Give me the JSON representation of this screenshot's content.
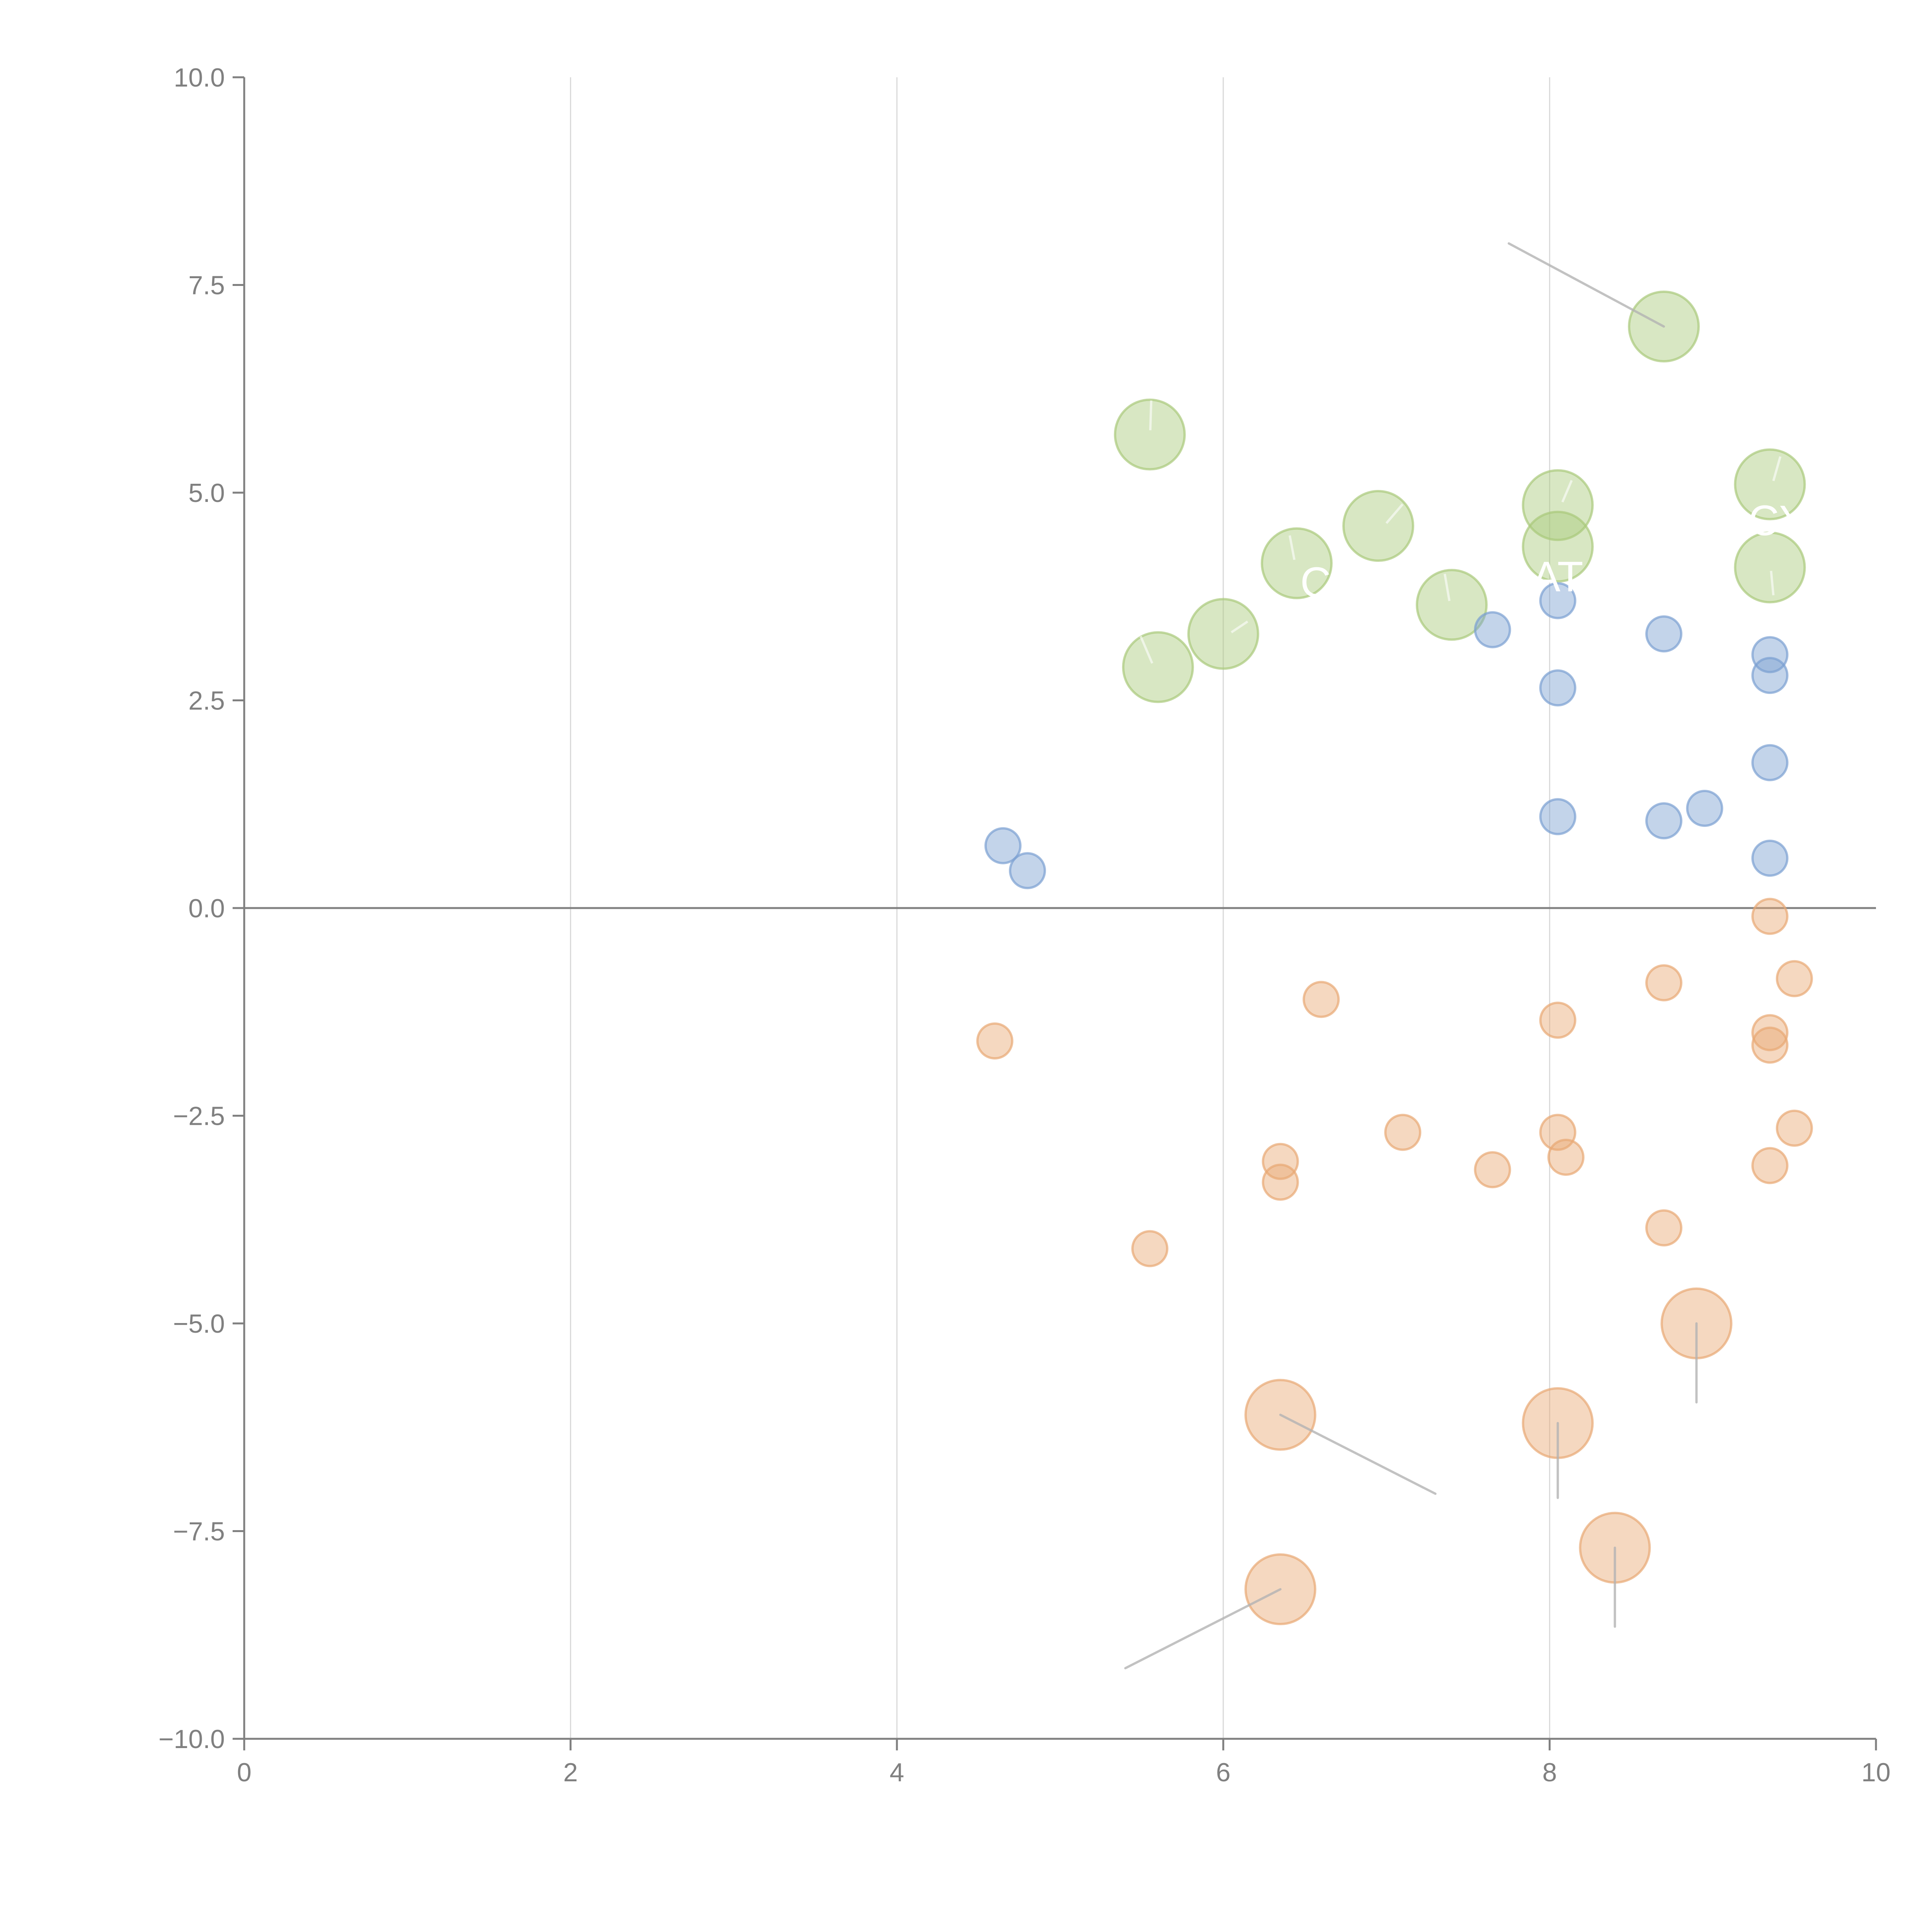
{
  "colors": {
    "green": "#a9c97a",
    "blue": "#7a9fd1",
    "orange": "#e8a873",
    "axis": "#808080",
    "grid": "#d9d9d9",
    "connector": "#b3b3b3"
  },
  "chart_data": {
    "type": "scatter",
    "title": "",
    "xlabel": "",
    "ylabel": "",
    "xlim": [
      0,
      10
    ],
    "ylim": [
      -10,
      10
    ],
    "x_ticks": [
      "0",
      "2",
      "4",
      "6",
      "8",
      "10"
    ],
    "y_ticks": [
      "10.0",
      "7.5",
      "5.0",
      "2.5",
      "0.0",
      "−2.5",
      "−5.0",
      "−7.5",
      "−10.0"
    ],
    "grid": "vertical",
    "visible_label_fragments": [
      "C",
      "AT",
      "CY"
    ],
    "series": [
      {
        "name": "green",
        "color": "#a9c97a",
        "size": "large",
        "points": [
          [
            5.55,
            5.7
          ],
          [
            8.7,
            7.0
          ],
          [
            6.95,
            4.6
          ],
          [
            6.45,
            4.15
          ],
          [
            8.05,
            4.85
          ],
          [
            8.05,
            4.35
          ],
          [
            9.35,
            5.1
          ],
          [
            9.35,
            4.1
          ],
          [
            7.4,
            3.65
          ],
          [
            6.0,
            3.3
          ],
          [
            5.6,
            2.9
          ]
        ]
      },
      {
        "name": "blue",
        "color": "#7a9fd1",
        "size": "small",
        "points": [
          [
            4.65,
            0.75
          ],
          [
            4.8,
            0.45
          ],
          [
            7.65,
            3.35
          ],
          [
            8.05,
            3.7
          ],
          [
            8.05,
            2.65
          ],
          [
            8.7,
            3.3
          ],
          [
            9.35,
            3.05
          ],
          [
            9.35,
            2.8
          ],
          [
            9.35,
            1.75
          ],
          [
            8.05,
            1.1
          ],
          [
            8.7,
            1.05
          ],
          [
            8.95,
            1.2
          ],
          [
            9.35,
            0.6
          ]
        ]
      },
      {
        "name": "orange-small",
        "color": "#e8a873",
        "size": "small",
        "points": [
          [
            9.35,
            -0.1
          ],
          [
            6.6,
            -1.1
          ],
          [
            4.6,
            -1.6
          ],
          [
            8.7,
            -0.9
          ],
          [
            9.5,
            -0.85
          ],
          [
            8.05,
            -1.35
          ],
          [
            9.35,
            -1.5
          ],
          [
            9.35,
            -1.65
          ],
          [
            7.1,
            -2.7
          ],
          [
            8.05,
            -2.7
          ],
          [
            8.1,
            -3.0
          ],
          [
            9.5,
            -2.65
          ],
          [
            6.35,
            -3.05
          ],
          [
            6.35,
            -3.3
          ],
          [
            7.65,
            -3.15
          ],
          [
            9.35,
            -3.1
          ],
          [
            5.55,
            -4.1
          ],
          [
            8.7,
            -3.85
          ]
        ]
      },
      {
        "name": "orange-large",
        "color": "#e8a873",
        "size": "large",
        "points": [
          [
            8.9,
            -5.0
          ],
          [
            6.35,
            -6.1
          ],
          [
            8.05,
            -6.2
          ],
          [
            8.4,
            -7.7
          ],
          [
            6.35,
            -8.2
          ]
        ]
      }
    ],
    "connectors": [
      [
        [
          8.7,
          7.0
        ],
        [
          7.75,
          8.0
        ]
      ],
      [
        [
          6.35,
          -6.1
        ],
        [
          7.3,
          -7.05
        ]
      ],
      [
        [
          8.05,
          -6.2
        ],
        [
          8.05,
          -7.1
        ]
      ],
      [
        [
          8.9,
          -5.0
        ],
        [
          8.9,
          -5.95
        ]
      ],
      [
        [
          8.4,
          -7.7
        ],
        [
          8.4,
          -8.65
        ]
      ],
      [
        [
          6.35,
          -8.2
        ],
        [
          5.4,
          -9.15
        ]
      ]
    ]
  }
}
